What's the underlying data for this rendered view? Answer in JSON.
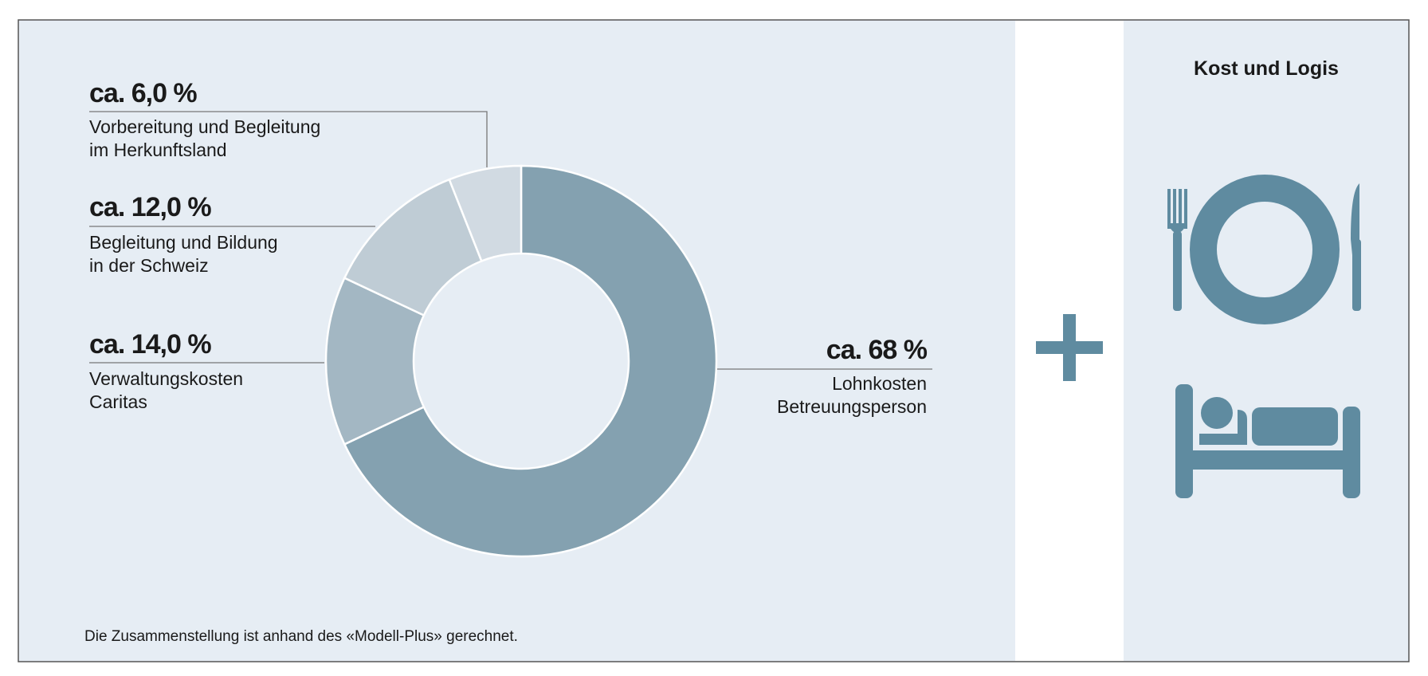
{
  "chart_data": {
    "type": "donut",
    "categories": [
      "Lohnkosten\nBetreuungsperson",
      "Verwaltungskosten\nCaritas",
      "Begleitung und Bildung\nin der Schweiz",
      "Vorbereitung und Begleitung\nim Herkunftsland"
    ],
    "values": [
      68,
      14,
      12,
      6
    ],
    "value_labels": [
      "ca. 68 %",
      "ca. 14,0 %",
      "ca. 12,0 %",
      "ca. 6,0 %"
    ],
    "colors": [
      "#84a1b0",
      "#a3b7c3",
      "#bfccd5",
      "#d1dae2"
    ]
  },
  "footnote": "Die Zusammenstellung ist anhand des «Modell-Plus» gerechnet.",
  "panel": {
    "title": "Kost und Logis"
  }
}
